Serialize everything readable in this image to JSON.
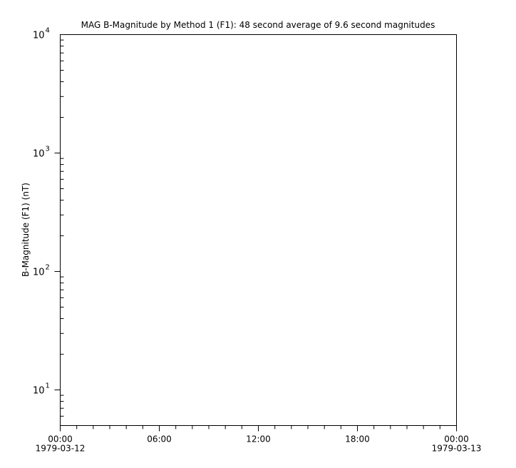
{
  "chart_data": {
    "type": "line",
    "title": "MAG  B-Magnitude by Method 1 (F1): 48 second average of 9.6 second magnitudes",
    "xlabel": "",
    "ylabel": "B-Magnitude (F1) (nT)",
    "x_range": [
      "1979-03-12 00:00",
      "1979-03-13 00:00"
    ],
    "x_ticks": [
      {
        "time": "00:00",
        "date": "1979-03-12",
        "hours": 0
      },
      {
        "time": "06:00",
        "date": "",
        "hours": 6
      },
      {
        "time": "12:00",
        "date": "",
        "hours": 12
      },
      {
        "time": "18:00",
        "date": "",
        "hours": 18
      },
      {
        "time": "00:00",
        "date": "1979-03-13",
        "hours": 24
      }
    ],
    "y_scale": "log",
    "ylim": [
      5,
      10000
    ],
    "y_ticks": [
      {
        "value": 10,
        "base": "10",
        "exp": "1"
      },
      {
        "value": 100,
        "base": "10",
        "exp": "2"
      },
      {
        "value": 1000,
        "base": "10",
        "exp": "3"
      },
      {
        "value": 10000,
        "base": "10",
        "exp": "4"
      }
    ],
    "grid": false,
    "series": []
  }
}
